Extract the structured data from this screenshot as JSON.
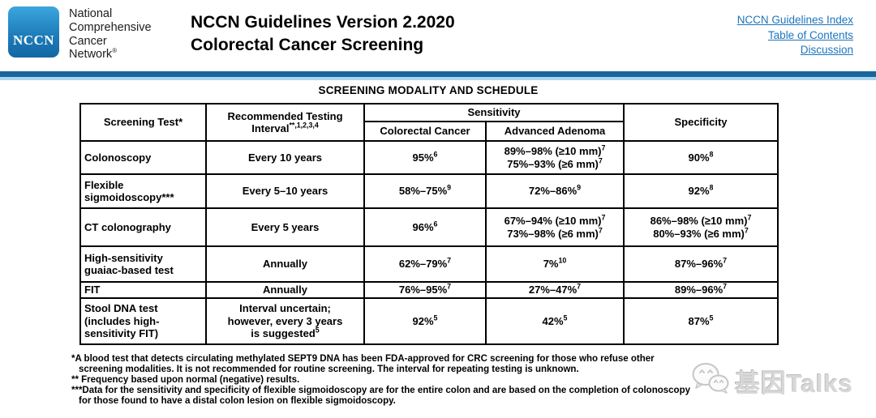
{
  "header": {
    "logo_text": "NCCN",
    "org_name": "National\nComprehensive\nCancer\nNetwork^®^",
    "title_line1": "NCCN Guidelines Version 2.2020",
    "title_line2": "Colorectal Cancer Screening",
    "links": [
      {
        "label": "NCCN Guidelines Index"
      },
      {
        "label": "Table of Contents"
      },
      {
        "label": "Discussion"
      }
    ]
  },
  "section_title": "SCREENING MODALITY AND SCHEDULE",
  "table": {
    "headers": {
      "screening_test": "Screening Test*",
      "interval": "Recommended Testing\nInterval^**,1,2,3,4^",
      "sensitivity": "Sensitivity",
      "colorectal_cancer": "Colorectal Cancer",
      "advanced_adenoma": "Advanced Adenoma",
      "specificity": "Specificity"
    },
    "rows": [
      {
        "test": "Colonoscopy",
        "interval": "Every 10 years",
        "sens_crc": "95%^6^",
        "sens_aa": "89%–98% (≥10 mm)^7^\n75%–93% (≥6 mm)^7^",
        "spec": "90%^8^"
      },
      {
        "test": "Flexible\nsigmoidoscopy***",
        "interval": "Every 5–10 years",
        "sens_crc": "58%–75%^9^",
        "sens_aa": "72%–86%^9^",
        "spec": "92%^8^"
      },
      {
        "test": "CT colonography",
        "interval": "Every 5 years",
        "sens_crc": "96%^6^",
        "sens_aa": "67%–94% (≥10 mm)^7^\n73%–98% (≥6 mm)^7^",
        "spec": "86%–98% (≥10 mm)^7^\n80%–93% (≥6 mm)^7^"
      },
      {
        "test": "High-sensitivity\nguaiac-based test",
        "interval": "Annually",
        "sens_crc": "62%–79%^7^",
        "sens_aa": "7%^10^",
        "spec": "87%–96%^7^"
      },
      {
        "test": "FIT",
        "interval": "Annually",
        "sens_crc": "76%–95%^7^",
        "sens_aa": "27%–47%^7^",
        "spec": "89%–96%^7^"
      },
      {
        "test": "Stool DNA test\n(includes high-\nsensitivity FIT)",
        "interval": "Interval uncertain;\nhowever, every 3 years\nis suggested^5^",
        "sens_crc": "92%^5^",
        "sens_aa": "42%^5^",
        "spec": "87%^5^"
      }
    ]
  },
  "footnotes": [
    "*A blood test that detects circulating methylated SEPT9 DNA has been FDA-approved for CRC screening for those who refuse other\nscreening modalities. It is not recommended for routine screening. The interval for repeating testing is unknown.",
    "** Frequency based upon normal (negative) results.",
    "***Data for the sensitivity and specificity of flexible sigmoidoscopy are for the entire colon and are based on the completion of colonoscopy\nfor those found to have a distal colon lesion on flexible sigmoidoscopy."
  ],
  "watermark": {
    "text": "基因Talks",
    "icon": "wechat-icon"
  },
  "colors": {
    "link_blue": "#1C75BC",
    "rule_dark_blue": "#17669D",
    "rule_light_blue": "#A9D5EE",
    "logo_blue_top": "#3BA6DE",
    "logo_blue_bottom": "#1267A3",
    "watermark_gray": "#d8d8d8"
  }
}
